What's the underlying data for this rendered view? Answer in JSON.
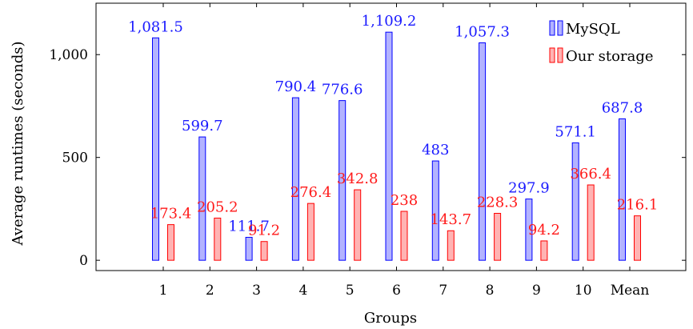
{
  "chart_data": {
    "type": "bar",
    "xlabel": "Groups",
    "ylabel": "Average runtimes (seconds)",
    "categories": [
      "1",
      "2",
      "3",
      "4",
      "5",
      "6",
      "7",
      "8",
      "9",
      "10",
      "Mean"
    ],
    "yticks": [
      {
        "value": 0,
        "label": "0"
      },
      {
        "value": 500,
        "label": "500"
      },
      {
        "value": 1000,
        "label": "1,000"
      }
    ],
    "ylim": [
      -50,
      1250
    ],
    "legend_position": "top-right",
    "grid": false,
    "series": [
      {
        "name": "MySQL",
        "stroke": "#0000ff",
        "fill": "#b3b3ff",
        "label_color": "#1a1aff",
        "values": [
          1081.5,
          599.7,
          111.7,
          790.4,
          776.6,
          1109.2,
          483,
          1057.3,
          297.9,
          571.1,
          687.8
        ],
        "labels": [
          "1,081.5",
          "599.7",
          "111.7",
          "790.4",
          "776.6",
          "1,109.2",
          "483",
          "1,057.3",
          "297.9",
          "571.1",
          "687.8"
        ]
      },
      {
        "name": "Our storage",
        "stroke": "#ff0000",
        "fill": "#ffb3b3",
        "label_color": "#ff1a1a",
        "values": [
          173.4,
          205.2,
          91.2,
          276.4,
          342.8,
          238,
          143.7,
          228.3,
          94.2,
          366.4,
          216.1
        ],
        "labels": [
          "173.4",
          "205.2",
          "91.2",
          "276.4",
          "342.8",
          "238",
          "143.7",
          "228.3",
          "94.2",
          "366.4",
          "216.1"
        ]
      }
    ]
  }
}
